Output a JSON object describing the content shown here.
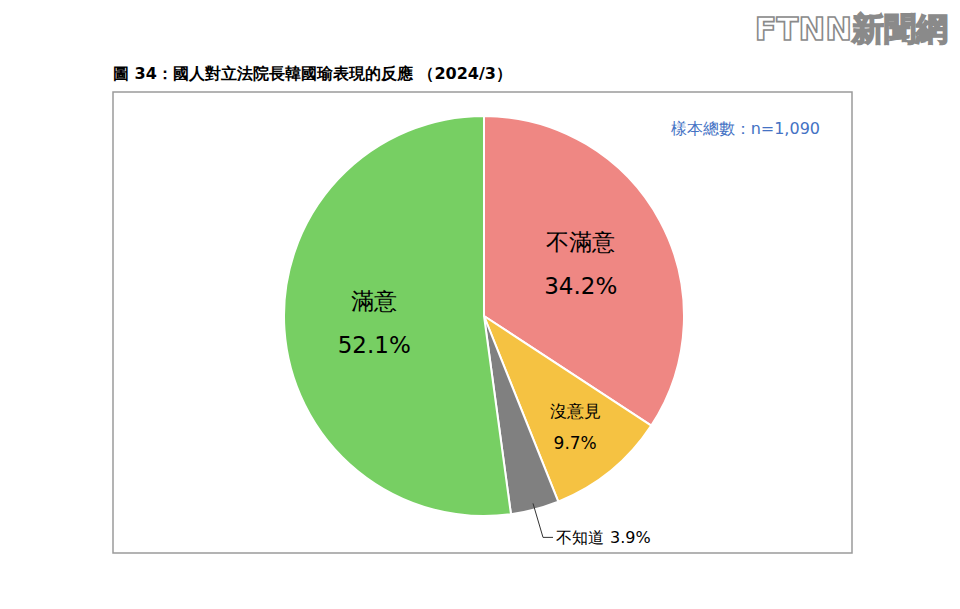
{
  "chart_data": {
    "type": "pie",
    "title": "圖 34：國人對立法院長韓國瑜表現的反應 （2024/3）",
    "subtitle": "樣本總數：n=1,090",
    "watermark": "FTNN新聞網",
    "categories": [
      "不滿意",
      "沒意見",
      "不知道",
      "滿意"
    ],
    "values": [
      34.2,
      9.7,
      3.9,
      52.1
    ],
    "value_labels": [
      "34.2%",
      "9.7%",
      "3.9%",
      "52.1%"
    ],
    "colors": [
      "#ef8783",
      "#f5c242",
      "#808080",
      "#77cf63"
    ],
    "data_labels": true
  }
}
